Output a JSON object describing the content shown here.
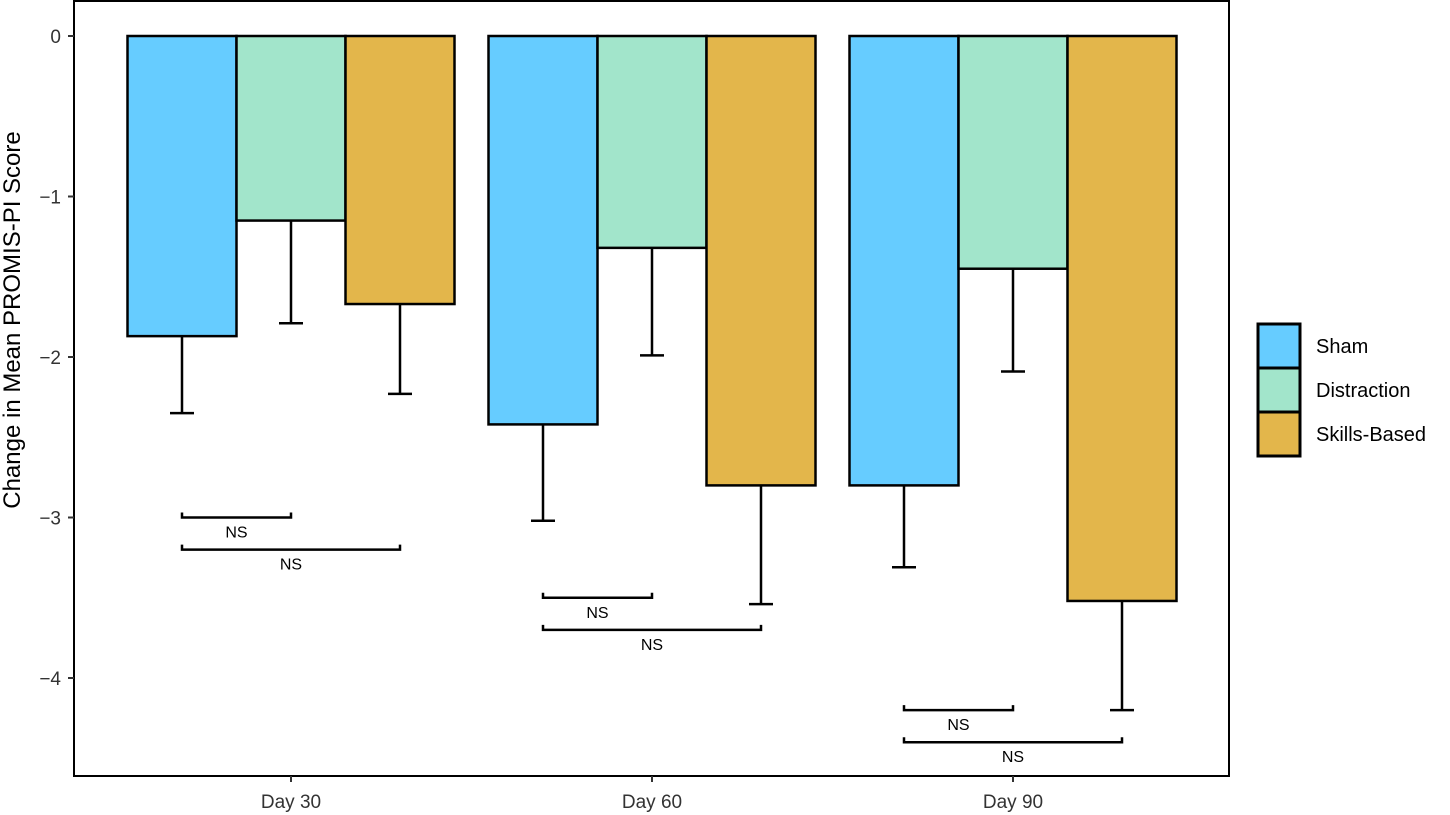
{
  "chart_data": {
    "type": "bar",
    "title": "",
    "xlabel": "",
    "ylabel": "Change in Mean PROMIS-PI Score",
    "ylim": [
      -4.6,
      0.2
    ],
    "yticks": [
      0,
      -1,
      -2,
      -3,
      -4
    ],
    "ytick_labels": [
      "0",
      "−1",
      "−2",
      "−3",
      "−4"
    ],
    "categories": [
      "Day 30",
      "Day 60",
      "Day 90"
    ],
    "grid": false,
    "legend_position": "right",
    "series": [
      {
        "name": "Sham",
        "color": "#66CCFF",
        "values": [
          -1.87,
          -2.42,
          -2.8
        ],
        "error": [
          0.48,
          0.6,
          0.51
        ]
      },
      {
        "name": "Distraction",
        "color": "#A2E5CB",
        "values": [
          -1.15,
          -1.32,
          -1.45
        ],
        "error": [
          0.64,
          0.67,
          0.64
        ]
      },
      {
        "name": "Skills-Based",
        "color": "#E3B64B",
        "values": [
          -1.67,
          -2.8,
          -3.52
        ],
        "error": [
          0.56,
          0.74,
          0.68
        ]
      }
    ],
    "annotations": [
      {
        "category": "Day 30",
        "from": "Sham",
        "to": "Distraction",
        "y": -3.0,
        "label": "NS"
      },
      {
        "category": "Day 30",
        "from": "Sham",
        "to": "Skills-Based",
        "y": -3.2,
        "label": "NS"
      },
      {
        "category": "Day 60",
        "from": "Sham",
        "to": "Distraction",
        "y": -3.5,
        "label": "NS"
      },
      {
        "category": "Day 60",
        "from": "Sham",
        "to": "Skills-Based",
        "y": -3.7,
        "label": "NS"
      },
      {
        "category": "Day 90",
        "from": "Sham",
        "to": "Distraction",
        "y": -4.2,
        "label": "NS"
      },
      {
        "category": "Day 90",
        "from": "Sham",
        "to": "Skills-Based",
        "y": -4.4,
        "label": "NS"
      }
    ]
  }
}
